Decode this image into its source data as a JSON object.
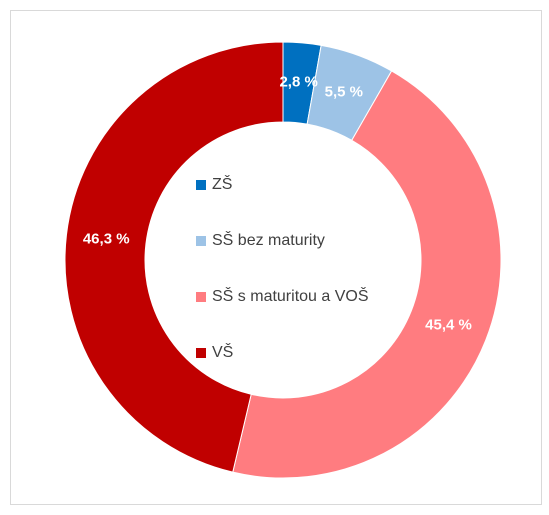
{
  "chart_data": {
    "type": "pie",
    "categories": [
      "ZŠ",
      "SŠ bez maturity",
      "SŠ s maturitou a VOŠ",
      "VŠ"
    ],
    "values": [
      2.8,
      5.5,
      45.4,
      46.3
    ],
    "value_labels": [
      "2,8 %",
      "5,5 %",
      "45,4 %",
      "46,3 %"
    ],
    "colors": [
      "#0070c0",
      "#9dc3e6",
      "#ff7c80",
      "#c00000"
    ],
    "donut": true,
    "legend": "center"
  }
}
